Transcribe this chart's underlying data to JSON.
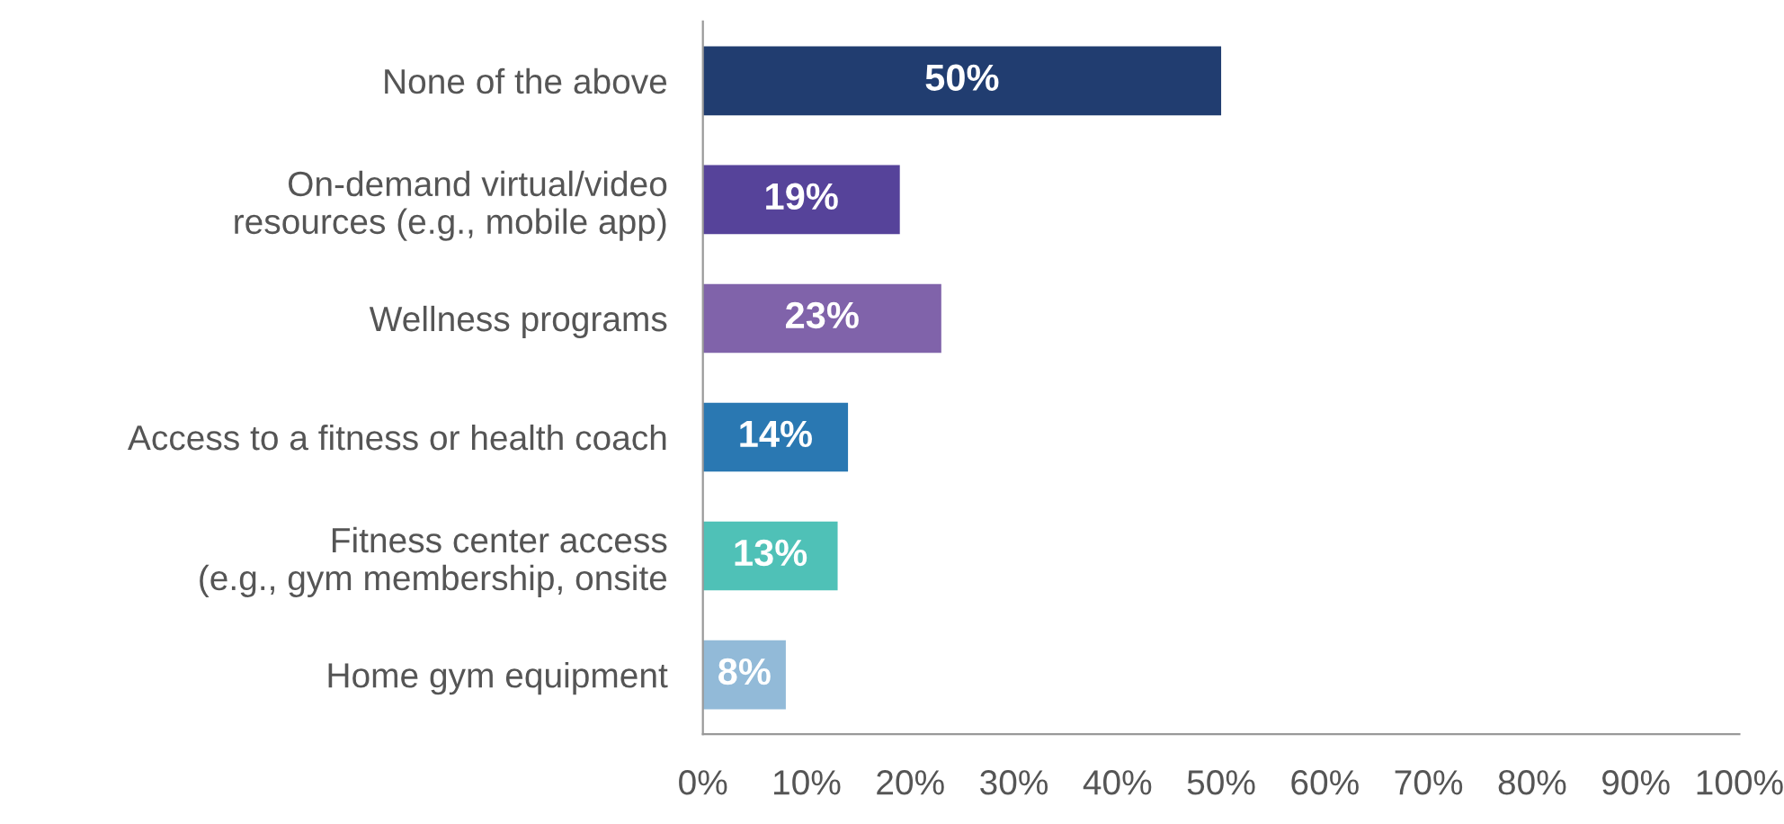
{
  "chart_data": {
    "type": "bar",
    "orientation": "horizontal",
    "categories": [
      "None of the above",
      "On-demand virtual/video\nresources (e.g., mobile app)",
      "Wellness programs",
      "Access to a fitness or health coach",
      "Fitness center access\n(e.g., gym membership, onsite",
      "Home gym equipment"
    ],
    "values": [
      50,
      19,
      23,
      14,
      13,
      8
    ],
    "colors": [
      "#213d70",
      "#56439a",
      "#8063aa",
      "#2a78b2",
      "#4fc1b7",
      "#92bad8"
    ],
    "value_labels": [
      "50%",
      "19%",
      "23%",
      "14%",
      "13%",
      "8%"
    ],
    "xlim": [
      0,
      100
    ],
    "xticks": [
      {
        "value": 0,
        "label": "0%"
      },
      {
        "value": 10,
        "label": "10%"
      },
      {
        "value": 20,
        "label": "20%"
      },
      {
        "value": 30,
        "label": "30%"
      },
      {
        "value": 40,
        "label": "40%"
      },
      {
        "value": 50,
        "label": "50%"
      },
      {
        "value": 60,
        "label": "60%"
      },
      {
        "value": 70,
        "label": "70%"
      },
      {
        "value": 80,
        "label": "80%"
      },
      {
        "value": 90,
        "label": "90%"
      },
      {
        "value": 100,
        "label": "100%"
      }
    ],
    "grid": false,
    "legend": false
  }
}
